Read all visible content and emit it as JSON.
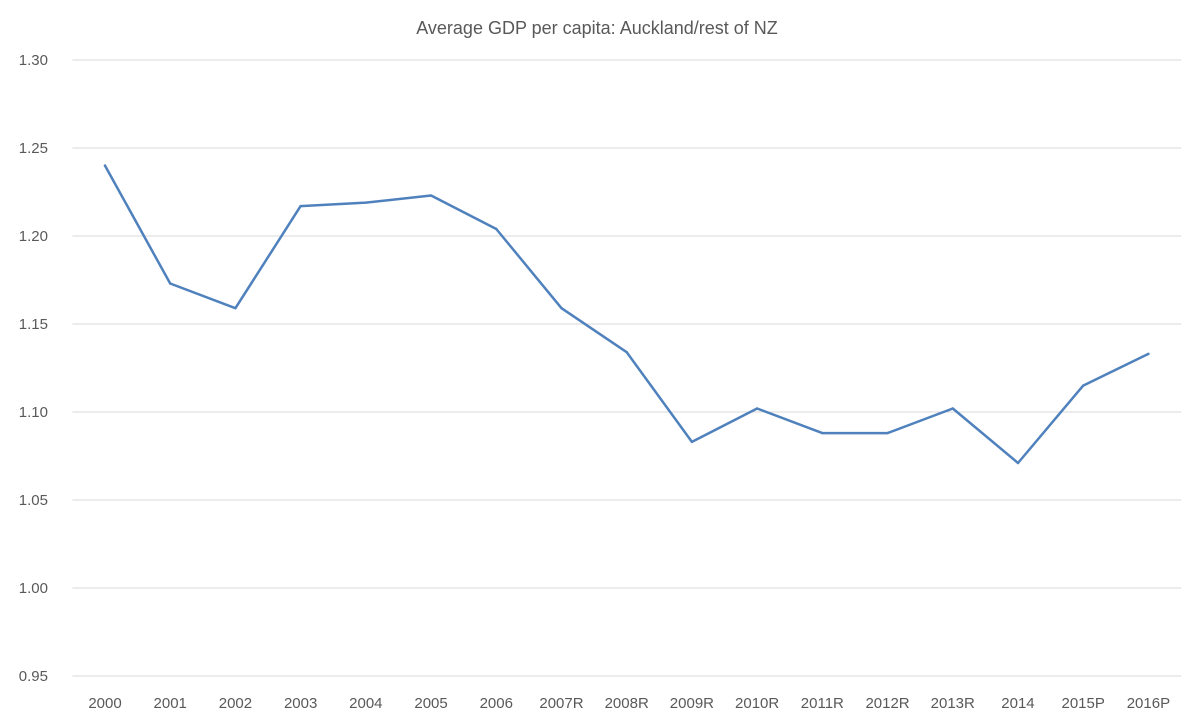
{
  "chart_data": {
    "type": "line",
    "title": "Average GDP per capita: Auckland/rest of NZ",
    "xlabel": "",
    "ylabel": "",
    "categories": [
      "2000",
      "2001",
      "2002",
      "2003",
      "2004",
      "2005",
      "2006",
      "2007R",
      "2008R",
      "2009R",
      "2010R",
      "2011R",
      "2012R",
      "2013R",
      "2014",
      "2015P",
      "2016P"
    ],
    "series": [
      {
        "values": [
          1.24,
          1.173,
          1.159,
          1.217,
          1.219,
          1.223,
          1.204,
          1.159,
          1.134,
          1.083,
          1.102,
          1.088,
          1.088,
          1.102,
          1.071,
          1.115,
          1.133
        ]
      }
    ],
    "ylim": [
      0.95,
      1.3
    ],
    "yticks": [
      "0.95",
      "1.00",
      "1.05",
      "1.10",
      "1.15",
      "1.20",
      "1.25",
      "1.30"
    ],
    "grid": true,
    "legend": "none",
    "colors": {
      "line": "#4f81bd",
      "grid": "#d9d9d9"
    }
  }
}
